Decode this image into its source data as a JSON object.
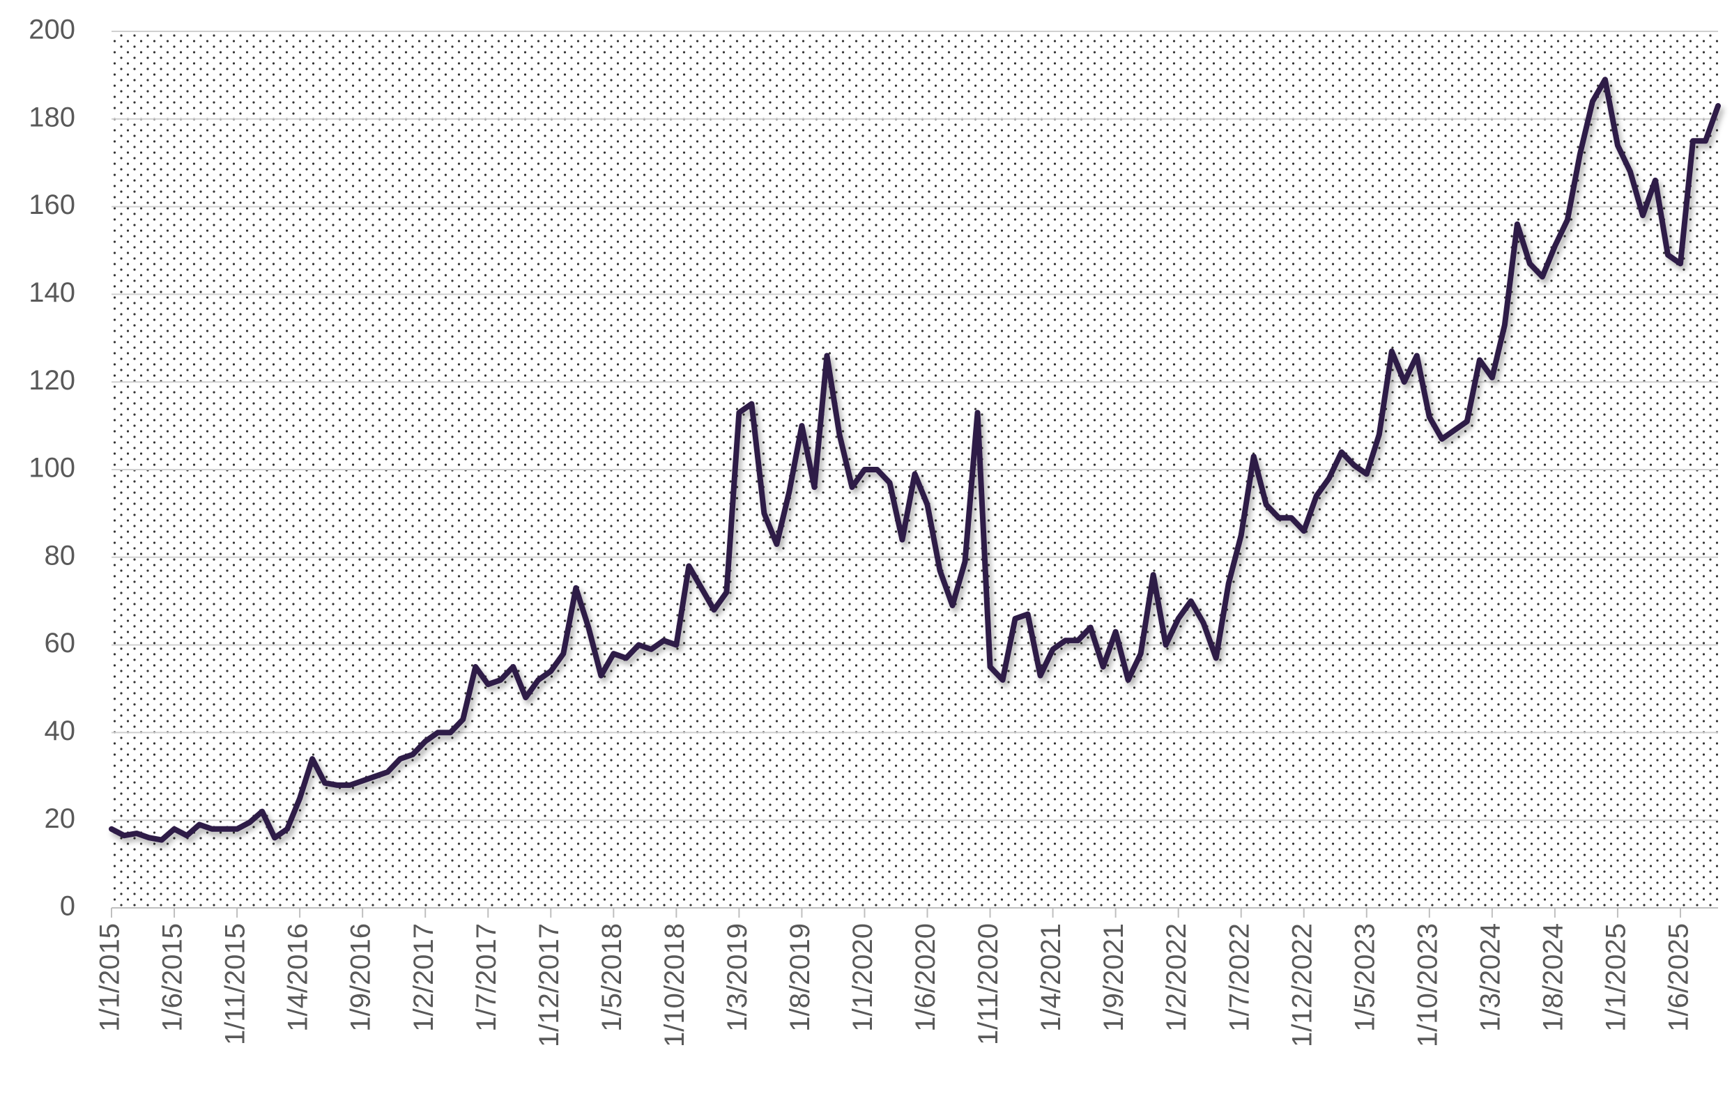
{
  "chart_data": {
    "type": "line",
    "color": "#2e1a47",
    "grid": true,
    "ylim": [
      0,
      200
    ],
    "yticks": [
      0,
      20,
      40,
      60,
      80,
      100,
      120,
      140,
      160,
      180,
      200
    ],
    "categories": [
      "1/1/2015",
      null,
      null,
      null,
      null,
      "1/6/2015",
      null,
      null,
      null,
      null,
      "1/11/2015",
      null,
      null,
      null,
      null,
      "1/4/2016",
      null,
      null,
      null,
      null,
      "1/9/2016",
      null,
      null,
      null,
      null,
      "1/2/2017",
      null,
      null,
      null,
      null,
      "1/7/2017",
      null,
      null,
      null,
      null,
      "1/12/2017",
      null,
      null,
      null,
      null,
      "1/5/2018",
      null,
      null,
      null,
      null,
      "1/10/2018",
      null,
      null,
      null,
      null,
      "1/3/2019",
      null,
      null,
      null,
      null,
      "1/8/2019",
      null,
      null,
      null,
      null,
      "1/1/2020",
      null,
      null,
      null,
      null,
      "1/6/2020",
      null,
      null,
      null,
      null,
      "1/11/2020",
      null,
      null,
      null,
      null,
      "1/4/2021",
      null,
      null,
      null,
      null,
      "1/9/2021",
      null,
      null,
      null,
      null,
      "1/2/2022",
      null,
      null,
      null,
      null,
      "1/7/2022",
      null,
      null,
      null,
      null,
      "1/12/2022",
      null,
      null,
      null,
      null,
      "1/5/2023",
      null,
      null,
      null,
      null,
      "1/10/2023",
      null,
      null,
      null,
      null,
      "1/3/2024",
      null,
      null,
      null,
      null,
      "1/8/2024",
      null,
      null,
      null,
      null,
      "1/1/2025",
      null,
      null,
      null,
      null,
      "1/6/2025",
      null,
      null,
      null
    ],
    "values": [
      18,
      16.5,
      17,
      16,
      15.5,
      18,
      16.5,
      19,
      18,
      18,
      18,
      19.5,
      22,
      16,
      18,
      25,
      34,
      28.5,
      28,
      28,
      29,
      30,
      31,
      34,
      35,
      38,
      40,
      40,
      43,
      55,
      51,
      52,
      55,
      48,
      52,
      54,
      58,
      73,
      64,
      53,
      58,
      57,
      60,
      59,
      61,
      60,
      78,
      73,
      68,
      72,
      113,
      115,
      90,
      83,
      95,
      110,
      96,
      126,
      108,
      96,
      100,
      100,
      97,
      84,
      99,
      92,
      77,
      69,
      79,
      113,
      55,
      52,
      66,
      67,
      53,
      59,
      61,
      61,
      64,
      55,
      63,
      52,
      58,
      76,
      60,
      66,
      70,
      65,
      57,
      74,
      85,
      103,
      92,
      89,
      89,
      86,
      94,
      98,
      104,
      101,
      99,
      108,
      127,
      120,
      126,
      112,
      107,
      109,
      111,
      125,
      121,
      133,
      156,
      147,
      144,
      151,
      157,
      172,
      184,
      189,
      174,
      168,
      158,
      166,
      149,
      147,
      175,
      175,
      183
    ]
  }
}
